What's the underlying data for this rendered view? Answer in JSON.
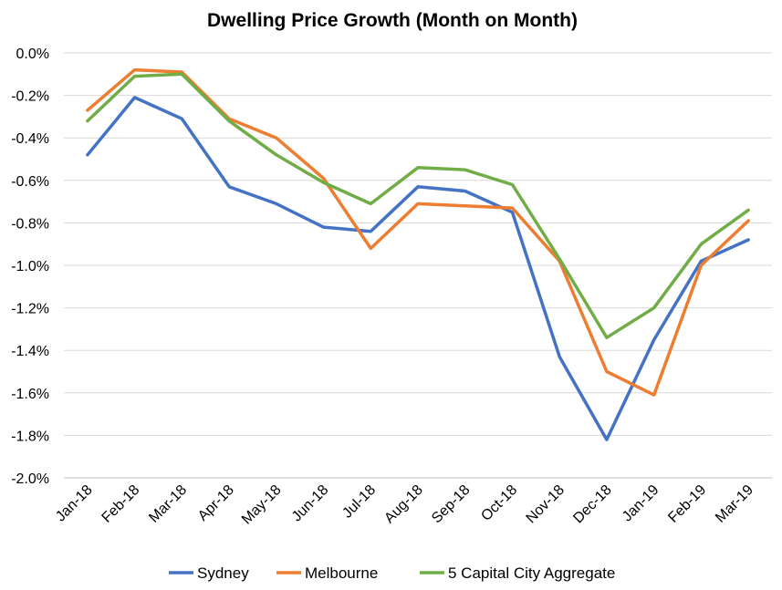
{
  "chart_data": {
    "type": "line",
    "title": "Dwelling Price Growth (Month on Month)",
    "xlabel": "",
    "ylabel": "",
    "categories": [
      "Jan-18",
      "Feb-18",
      "Mar-18",
      "Apr-18",
      "May-18",
      "Jun-18",
      "Jul-18",
      "Aug-18",
      "Sep-18",
      "Oct-18",
      "Nov-18",
      "Dec-18",
      "Jan-19",
      "Feb-19",
      "Mar-19"
    ],
    "ylim": [
      -2.0,
      0.0
    ],
    "yticks": [
      "0.0%",
      "-0.2%",
      "-0.4%",
      "-0.6%",
      "-0.8%",
      "-1.0%",
      "-1.2%",
      "-1.4%",
      "-1.6%",
      "-1.8%",
      "-2.0%"
    ],
    "ytick_values": [
      0.0,
      -0.2,
      -0.4,
      -0.6,
      -0.8,
      -1.0,
      -1.2,
      -1.4,
      -1.6,
      -1.8,
      -2.0
    ],
    "grid": true,
    "legend_position": "bottom",
    "series": [
      {
        "name": "Sydney",
        "color": "#4472C4",
        "values": [
          -0.48,
          -0.21,
          -0.31,
          -0.63,
          -0.71,
          -0.82,
          -0.84,
          -0.63,
          -0.65,
          -0.75,
          -1.43,
          -1.82,
          -1.35,
          -0.98,
          -0.88
        ]
      },
      {
        "name": "Melbourne",
        "color": "#ED7D31",
        "values": [
          -0.27,
          -0.08,
          -0.09,
          -0.31,
          -0.4,
          -0.59,
          -0.92,
          -0.71,
          -0.72,
          -0.73,
          -0.98,
          -1.5,
          -1.61,
          -1.0,
          -0.79
        ]
      },
      {
        "name": "5 Capital City Aggregate",
        "color": "#70AD47",
        "values": [
          -0.32,
          -0.11,
          -0.1,
          -0.32,
          -0.48,
          -0.61,
          -0.71,
          -0.54,
          -0.55,
          -0.62,
          -0.97,
          -1.34,
          -1.2,
          -0.9,
          -0.74
        ]
      }
    ]
  }
}
